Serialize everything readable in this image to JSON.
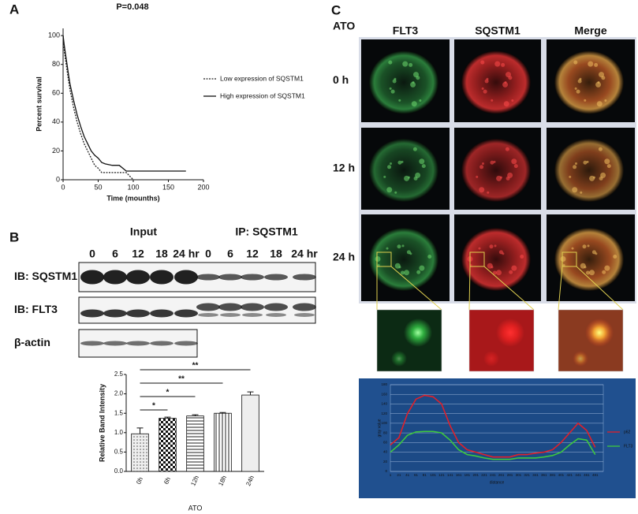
{
  "panels": [
    "A",
    "B",
    "C"
  ],
  "chart_data": [
    {
      "type": "line",
      "title": "P=0.048",
      "xlabel": "Time (mounths)",
      "ylabel": "Percent survival",
      "x": [
        0,
        2,
        5,
        8,
        10,
        15,
        20,
        25,
        30,
        35,
        40,
        45,
        50,
        55,
        60,
        70,
        80,
        90,
        100,
        120,
        150,
        175
      ],
      "series": [
        {
          "name": "Low expression of SQSTM1",
          "color": "#222222",
          "line_style": "dotted",
          "values": [
            100,
            88,
            78,
            68,
            62,
            50,
            40,
            32,
            25,
            20,
            15,
            10,
            8,
            5,
            5,
            5,
            5,
            5,
            0,
            null,
            null,
            null
          ]
        },
        {
          "name": "High expression of SQSTM1",
          "color": "#111111",
          "line_style": "solid",
          "values": [
            100,
            92,
            82,
            72,
            66,
            55,
            45,
            37,
            30,
            25,
            20,
            17,
            15,
            12,
            11,
            10,
            10,
            6,
            6,
            6,
            6,
            6
          ]
        }
      ],
      "xlim": [
        0,
        200
      ],
      "xticks": [
        0,
        50,
        100,
        150,
        200
      ],
      "ylim": [
        0,
        105
      ],
      "yticks": [
        0,
        20,
        40,
        60,
        80,
        100
      ],
      "grid": false
    },
    {
      "type": "bar",
      "xlabel": "ATO",
      "ylabel": "Relative Band Intensity",
      "categories": [
        "0h",
        "6h",
        "12h",
        "18h",
        "24h"
      ],
      "values": [
        0.97,
        1.37,
        1.43,
        1.5,
        1.97
      ],
      "errors": [
        0.15,
        0.03,
        0.03,
        0.02,
        0.08
      ],
      "significance": [
        null,
        "*",
        "*",
        "**",
        "**"
      ],
      "ylim": [
        0,
        2.5
      ],
      "yticks": [
        {
          "value": 0,
          "label": "0.0"
        },
        {
          "value": 0.5,
          "label": "0.5"
        },
        {
          "value": 1,
          "label": "1.0"
        },
        {
          "value": 1.5,
          "label": "1.5"
        },
        {
          "value": 2,
          "label": "2.0"
        },
        {
          "value": 2.5,
          "label": "2.5"
        }
      ],
      "grid": false
    },
    {
      "type": "line",
      "xlabel": "distance",
      "ylabel": "gray value",
      "x": [
        1,
        21,
        41,
        61,
        81,
        101,
        121,
        141,
        161,
        181,
        201,
        221,
        241,
        261,
        281,
        301,
        321,
        341,
        361,
        381,
        401,
        421,
        441,
        461,
        481
      ],
      "series": [
        {
          "name": "p62",
          "color": "#e0202a",
          "line_style": "solid",
          "values": [
            55,
            70,
            120,
            150,
            158,
            155,
            140,
            95,
            60,
            45,
            40,
            35,
            30,
            30,
            30,
            35,
            35,
            38,
            40,
            45,
            60,
            80,
            100,
            85,
            50
          ]
        },
        {
          "name": "FLT3",
          "color": "#3ec83e",
          "line_style": "solid",
          "values": [
            40,
            55,
            75,
            82,
            83,
            83,
            80,
            65,
            45,
            35,
            32,
            28,
            25,
            25,
            25,
            28,
            28,
            28,
            30,
            33,
            40,
            55,
            68,
            65,
            35
          ]
        }
      ],
      "xlim": [
        1,
        500
      ],
      "xticks": [
        1,
        21,
        41,
        61,
        81,
        101,
        121,
        141,
        161,
        181,
        201,
        221,
        241,
        261,
        281,
        301,
        321,
        341,
        361,
        381,
        401,
        421,
        441,
        461,
        481
      ],
      "ylim": [
        0,
        180
      ],
      "yticks": [
        0,
        20,
        40,
        60,
        80,
        100,
        120,
        140,
        160,
        180
      ],
      "grid": true
    }
  ],
  "blot": {
    "groups": [
      "Input",
      "IP: SQSTM1"
    ],
    "lanes": [
      "0",
      "6",
      "12",
      "18",
      "24 hr",
      "0",
      "6",
      "12",
      "18",
      "24 hr"
    ],
    "rows": [
      "IB: SQSTM1",
      "IB: FLT3",
      "β-actin"
    ]
  },
  "microscopy": {
    "treatment": "ATO",
    "columns": [
      "FLT3",
      "SQSTM1",
      "Merge"
    ],
    "rows": [
      "0 h",
      "12 h",
      "24 h"
    ]
  }
}
